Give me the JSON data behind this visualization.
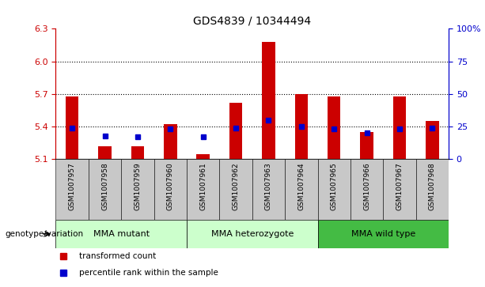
{
  "title": "GDS4839 / 10344494",
  "samples": [
    "GSM1007957",
    "GSM1007958",
    "GSM1007959",
    "GSM1007960",
    "GSM1007961",
    "GSM1007962",
    "GSM1007963",
    "GSM1007964",
    "GSM1007965",
    "GSM1007966",
    "GSM1007967",
    "GSM1007968"
  ],
  "transformed_count": [
    5.68,
    5.22,
    5.22,
    5.42,
    5.15,
    5.62,
    6.18,
    5.7,
    5.68,
    5.35,
    5.68,
    5.45
  ],
  "percentile_rank": [
    24,
    18,
    17,
    23,
    17,
    24,
    30,
    25,
    23,
    20,
    23,
    24
  ],
  "y_min": 5.1,
  "y_max": 6.3,
  "y_ticks": [
    5.1,
    5.4,
    5.7,
    6.0,
    6.3
  ],
  "y_right_ticks": [
    0,
    25,
    50,
    75,
    100
  ],
  "y_right_labels": [
    "0",
    "25",
    "50",
    "75",
    "100%"
  ],
  "dotted_lines": [
    5.4,
    5.7,
    6.0
  ],
  "bar_color": "#cc0000",
  "blue_color": "#0000cc",
  "bar_bottom": 5.1,
  "title_fontsize": 10,
  "axis_color_left": "#cc0000",
  "axis_color_right": "#0000cc",
  "legend_labels": [
    "transformed count",
    "percentile rank within the sample"
  ],
  "genotype_label": "genotype/variation",
  "xticklabel_bg": "#c8c8c8",
  "group_colors": [
    "#ccffcc",
    "#ccffcc",
    "#44bb44"
  ],
  "group_labels": [
    "MMA mutant",
    "MMA heterozygote",
    "MMA wild type"
  ],
  "group_ranges": [
    [
      0,
      3
    ],
    [
      4,
      7
    ],
    [
      8,
      11
    ]
  ],
  "bar_width": 0.4
}
